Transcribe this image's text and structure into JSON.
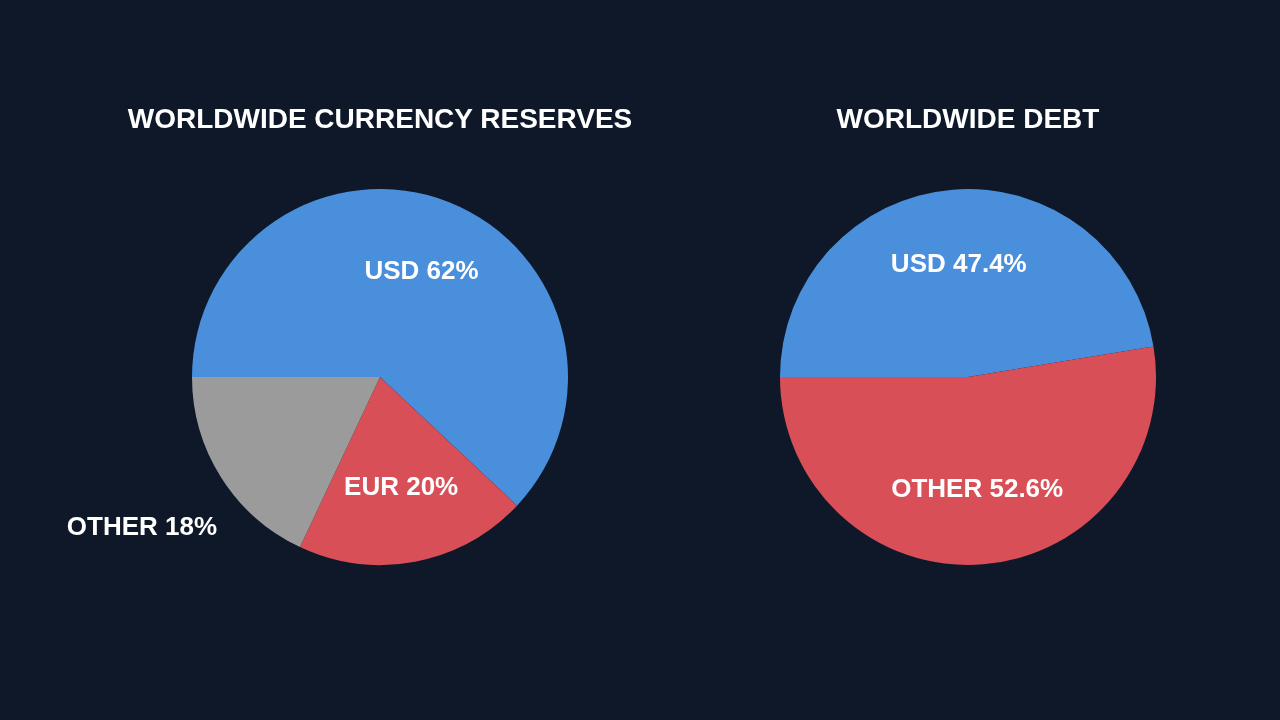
{
  "chart_data": [
    {
      "type": "pie",
      "title": "WORLDWIDE CURRENCY RESERVES",
      "categories": [
        "USD",
        "EUR",
        "OTHER"
      ],
      "values": [
        62,
        20,
        18
      ],
      "colors": [
        "#4a8fdc",
        "#d94f58",
        "#9b9b9b"
      ],
      "value_labels": [
        "62%",
        "20%",
        "18%"
      ],
      "legend": false
    },
    {
      "type": "pie",
      "title": "WORLDWIDE DEBT",
      "categories": [
        "USD",
        "OTHER"
      ],
      "values": [
        47.4,
        52.6
      ],
      "colors": [
        "#4a8fdc",
        "#d94f58"
      ],
      "value_labels": [
        "47.4%",
        "52.6%"
      ],
      "legend": false
    }
  ]
}
